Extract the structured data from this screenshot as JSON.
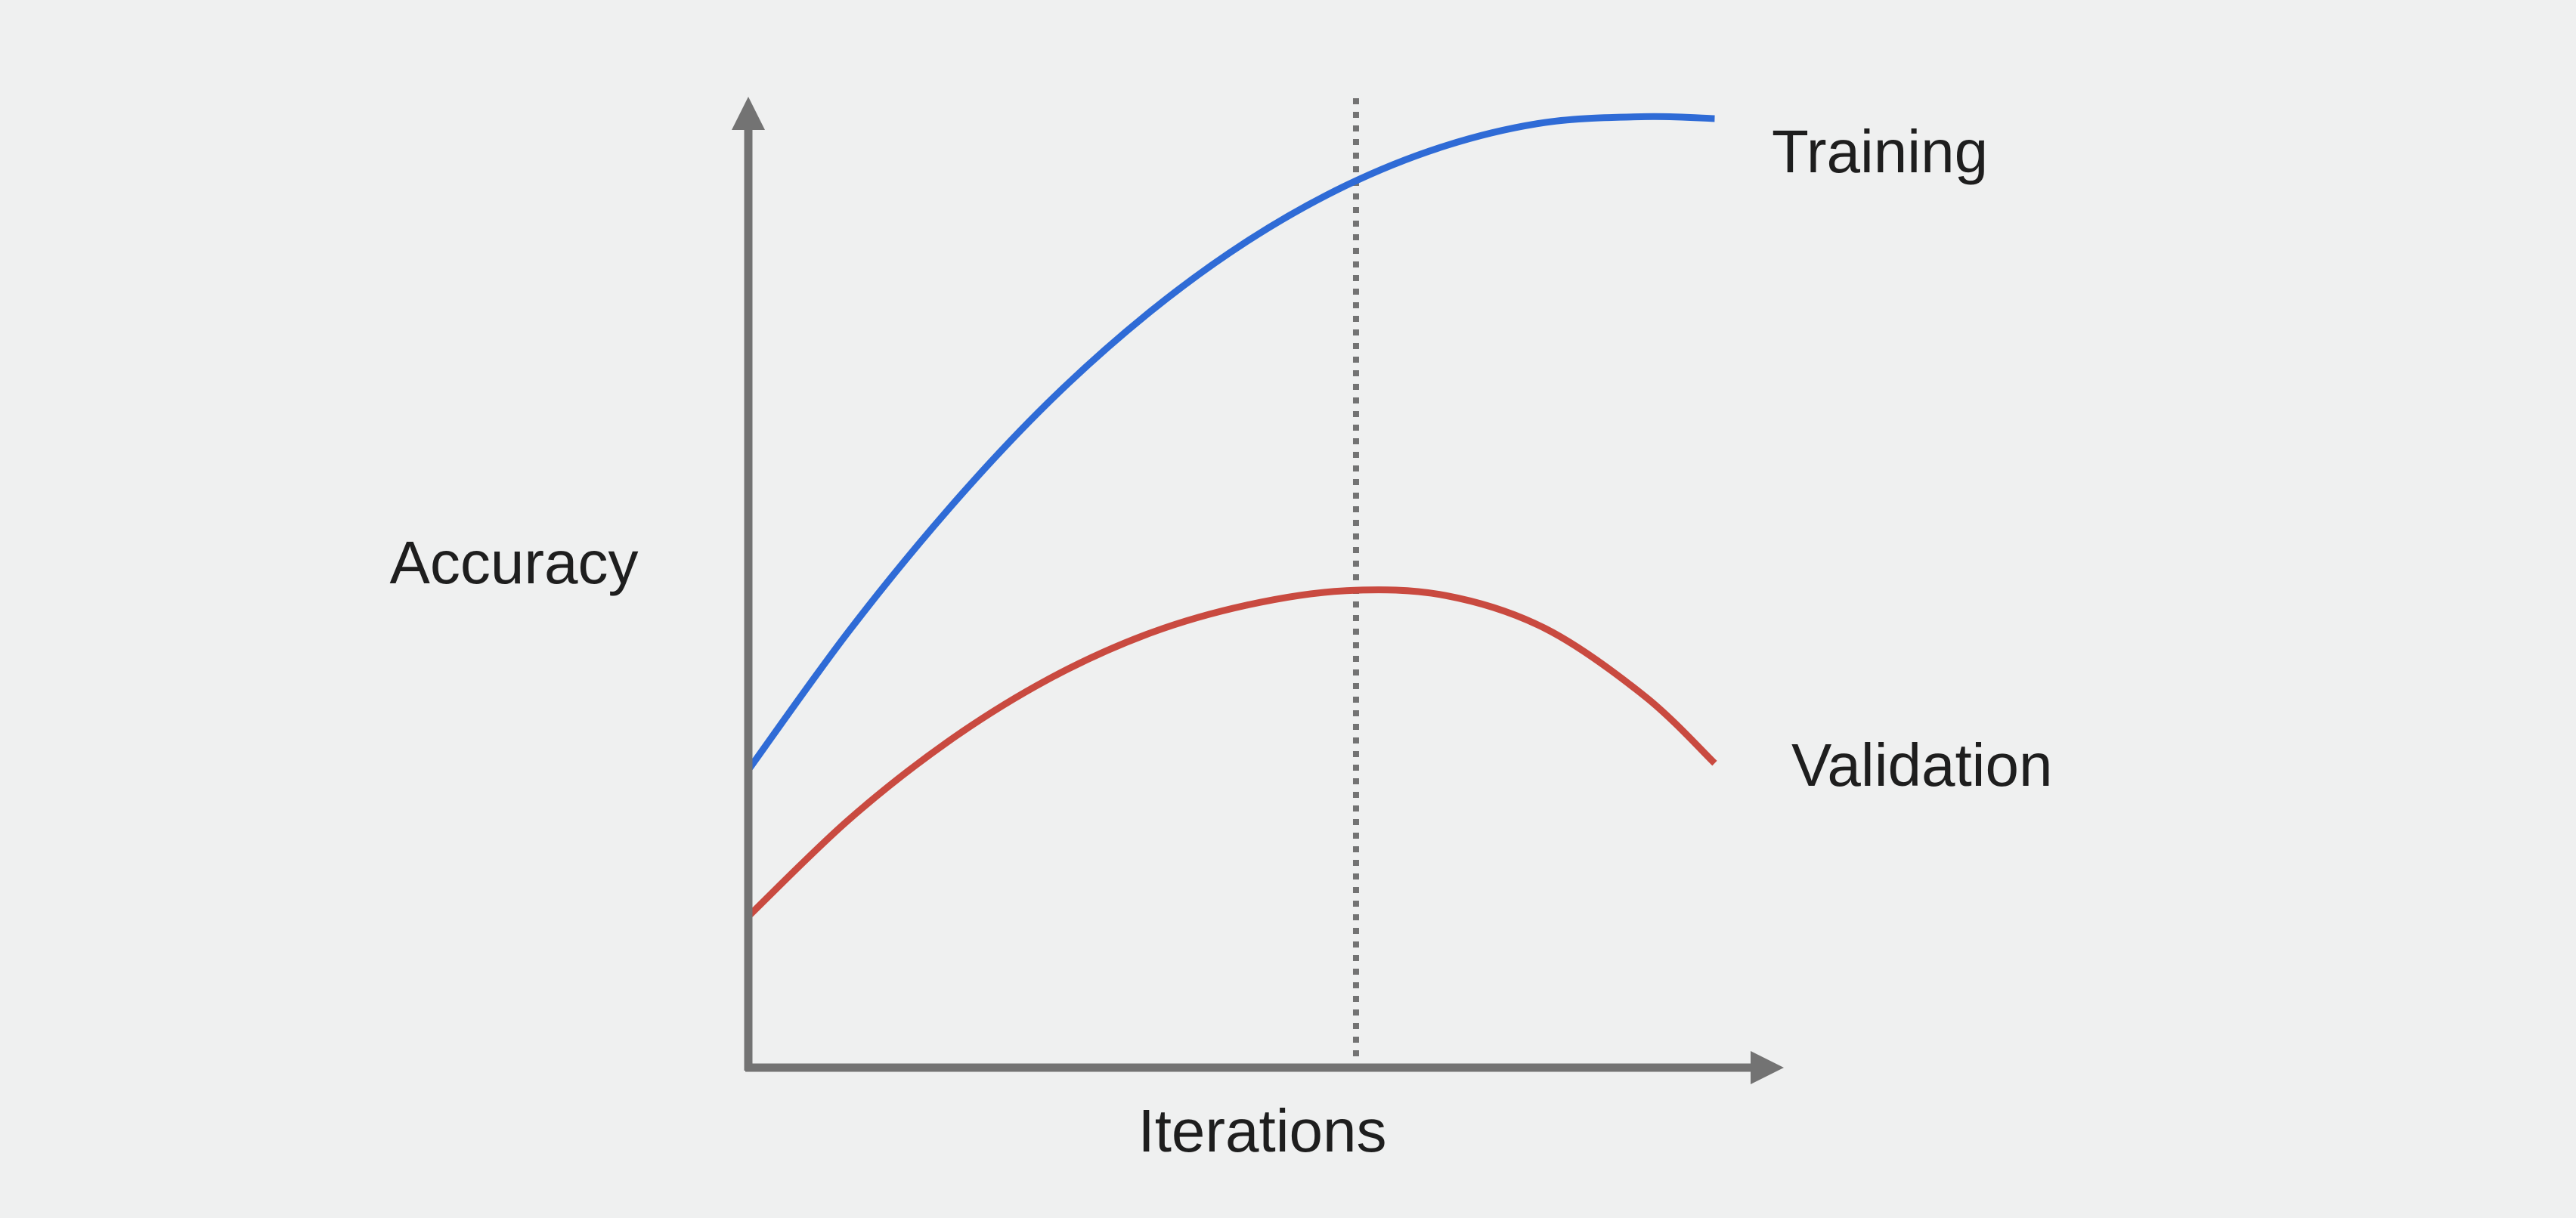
{
  "colors": {
    "background": "#eff0f0",
    "axis": "#737373",
    "marker": "#737373",
    "training": "#2f6bd6",
    "validation": "#c94a40",
    "text": "#1e1e1e"
  },
  "chart_data": {
    "type": "line",
    "title": "",
    "xlabel": "Iterations",
    "ylabel": "Accuracy",
    "x_ticks": "none",
    "y_ticks": "none",
    "grid": false,
    "legend": "direct labels at the right end of each line",
    "xlim": [
      0,
      100
    ],
    "ylim": [
      0,
      100
    ],
    "series": [
      {
        "name": "Training",
        "color": "#2f6bd6",
        "x": [
          0,
          10,
          20,
          30,
          40,
          50,
          60,
          70,
          80,
          90,
          97
        ],
        "y": [
          30.7,
          44.9,
          57.5,
          68.5,
          77.7,
          85.2,
          91.0,
          95.1,
          97.5,
          98.1,
          97.9
        ]
      },
      {
        "name": "Validation",
        "color": "#c94a40",
        "x": [
          0,
          10,
          20,
          30,
          40,
          50,
          60,
          70,
          80,
          90,
          97
        ],
        "y": [
          15.6,
          25.5,
          33.6,
          40.0,
          44.7,
          47.7,
          49.2,
          48.7,
          45.3,
          38.3,
          31.4
        ]
      }
    ],
    "annotations": [
      {
        "type": "vertical-dotted-line",
        "x": 61,
        "meaning": "peak validation accuracy"
      }
    ]
  }
}
